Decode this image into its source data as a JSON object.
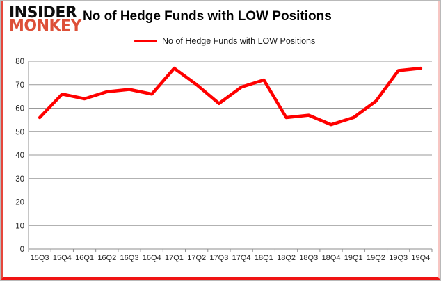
{
  "header": {
    "logo_line1": "INSIDER",
    "logo_line2": "MONKEY",
    "title": "No of Hedge Funds with LOW Positions"
  },
  "legend": {
    "label": "No of Hedge Funds with LOW Positions",
    "swatch_color": "#ff0000"
  },
  "chart_data": {
    "type": "line",
    "title": "No of Hedge Funds with LOW Positions",
    "categories": [
      "15Q3",
      "15Q4",
      "16Q1",
      "16Q2",
      "16Q3",
      "16Q4",
      "17Q1",
      "17Q2",
      "17Q3",
      "17Q4",
      "18Q1",
      "18Q2",
      "18Q3",
      "18Q4",
      "19Q1",
      "19Q2",
      "19Q3",
      "19Q4"
    ],
    "series": [
      {
        "name": "No of Hedge Funds with LOW Positions",
        "color": "#ff0000",
        "values": [
          56,
          66,
          64,
          67,
          68,
          66,
          77,
          70,
          62,
          69,
          72,
          56,
          57,
          53,
          56,
          63,
          76,
          77
        ]
      }
    ],
    "xlabel": "",
    "ylabel": "",
    "ylim": [
      0,
      80
    ],
    "ytick_step": 10,
    "grid": true,
    "legend_position": "top-center",
    "colors": {
      "gridline": "#999999",
      "axis": "#8c8c8c",
      "tick_label": "#262626"
    }
  },
  "frame": {
    "left_bar": "#e6473c",
    "bottom_bar": "#f01313",
    "right_bar": "#f7c6c3",
    "outer_border": "#b9b9b9"
  }
}
